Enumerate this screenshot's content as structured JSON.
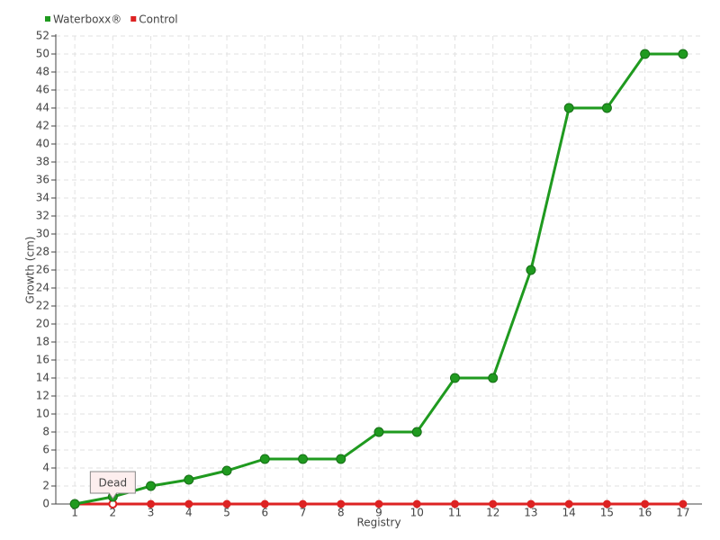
{
  "chart_data": {
    "type": "line",
    "x_label": "Registry",
    "y_label": "Growth (cm)",
    "categories": [
      "1",
      "2",
      "3",
      "4",
      "5",
      "6",
      "7",
      "8",
      "9",
      "10",
      "11",
      "12",
      "13",
      "14",
      "15",
      "16",
      "17"
    ],
    "series": [
      {
        "name": "Waterboxx®",
        "color": "#1f9a1f",
        "values": [
          0,
          0.8,
          2,
          2.7,
          3.7,
          5,
          5,
          5,
          8,
          8,
          14,
          14,
          26,
          44,
          44,
          50,
          50
        ]
      },
      {
        "name": "Control",
        "color": "#dd2222",
        "values": [
          0,
          0,
          0,
          0,
          0,
          0,
          0,
          0,
          0,
          0,
          0,
          0,
          0,
          0,
          0,
          0,
          0
        ]
      }
    ],
    "annotation": {
      "text": "Dead",
      "category": "2"
    },
    "ylim": [
      0,
      52
    ],
    "yticks": [
      0,
      2,
      4,
      6,
      8,
      10,
      12,
      14,
      16,
      18,
      20,
      22,
      24,
      26,
      28,
      30,
      32,
      34,
      36,
      38,
      40,
      42,
      44,
      46,
      48,
      50,
      52
    ],
    "grid": true,
    "legend": "top-left"
  }
}
